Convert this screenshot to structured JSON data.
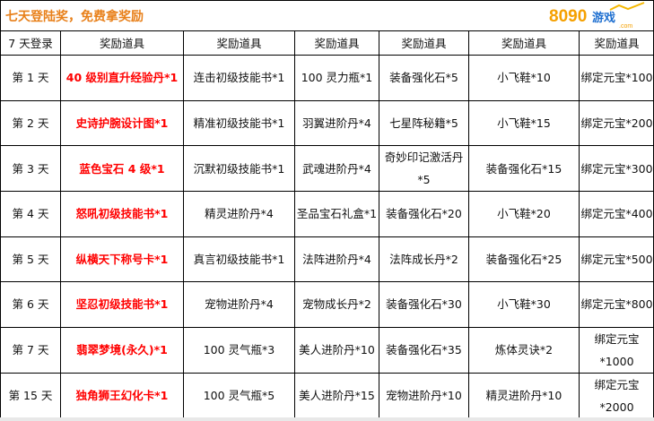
{
  "title": "七天登陆奖，免费拿奖励",
  "header": [
    "7 天登录",
    "奖励道具",
    "奖励道具",
    "奖励道具",
    "奖励道具",
    "奖励道具",
    "奖励道具"
  ],
  "rows": [
    [
      "第 1 天",
      "40 级别直升经验丹*1",
      "连击初级技能书*1",
      "100 灵力瓶*1",
      "装备强化石*5",
      "小飞鞋*10",
      "绑定元宝*100"
    ],
    [
      "第 2 天",
      "史诗护腕设计图*1",
      "精准初级技能书*1",
      "羽翼进阶丹*4",
      "七星阵秘籍*5",
      "小飞鞋*15",
      "绑定元宝*200"
    ],
    [
      "第 3 天",
      "蓝色宝石 4 级*1",
      "沉默初级技能书*1",
      "武魂进阶丹*4",
      "奇妙印记激活丹*5",
      "装备强化石*15",
      "绑定元宝*300"
    ],
    [
      "第 4 天",
      "怒吼初级技能书*1",
      "精灵进阶丹*4",
      "圣品宝石礼盒*1",
      "装备强化石*20",
      "小飞鞋*20",
      "绑定元宝*400"
    ],
    [
      "第 5 天",
      "纵横天下称号卡*1",
      "真言初级技能书*1",
      "法阵进阶丹*4",
      "法阵成长丹*2",
      "装备强化石*25",
      "绑定元宝*500"
    ],
    [
      "第 6 天",
      "坚忍初级技能书*1",
      "宠物进阶丹*4",
      "宠物成长丹*2",
      "装备强化石*30",
      "小飞鞋*30",
      "绑定元宝*800"
    ],
    [
      "第 7 天",
      "翡翠梦境(永久)*1",
      "100 灵气瓶*3",
      "美人进阶丹*10",
      "装备强化石*35",
      "炼体灵诀*2",
      "绑定元宝*1000"
    ],
    [
      "第 15 天",
      "独角狮王幻化卡*1",
      "100 灵气瓶*5",
      "美人进阶丹*15",
      "宠物进阶丹*10",
      "精灵进阶丹*10",
      "绑定元宝*2000"
    ]
  ],
  "watermark": {
    "text": "8090游戏",
    "sub": ".com"
  },
  "colors": {
    "title": "#e8801a",
    "highlight": "#ff0000"
  }
}
